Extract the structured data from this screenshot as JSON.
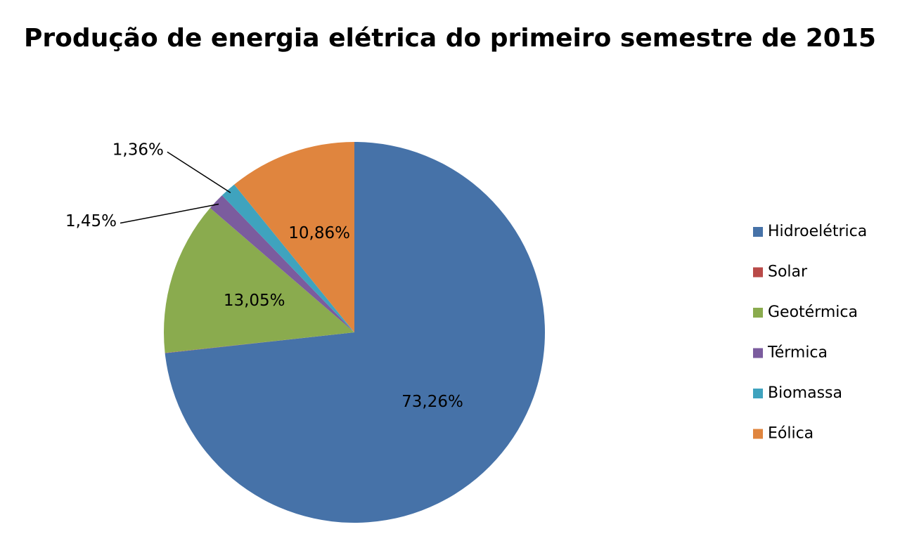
{
  "chart_data": {
    "type": "pie",
    "title": "Produção de energia elétrica do primeiro semestre de 2015",
    "categories": [
      "Hidroelétrica",
      "Solar",
      "Geotérmica",
      "Térmica",
      "Biomassa",
      "Eólica"
    ],
    "values": [
      73.26,
      0.02,
      13.05,
      1.45,
      1.36,
      10.86
    ],
    "value_labels": [
      "73,26%",
      null,
      "13,05%",
      "1,45%",
      "1,36%",
      "10,86%"
    ],
    "colors": [
      "#4672a8",
      "#b94a48",
      "#8aab4e",
      "#7b5c9e",
      "#3fa3be",
      "#e0853e"
    ],
    "legend": "right"
  }
}
